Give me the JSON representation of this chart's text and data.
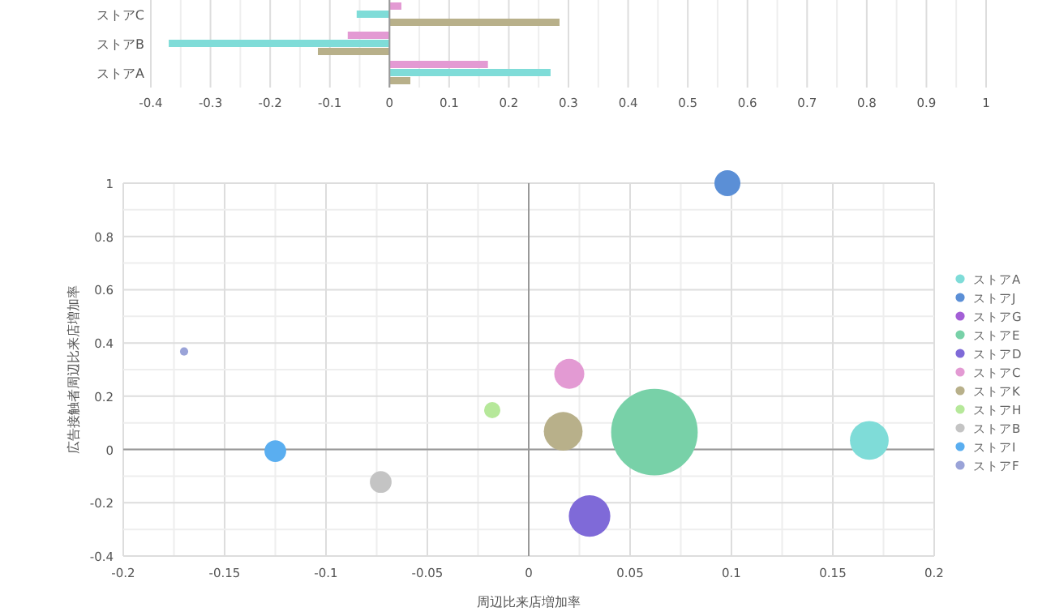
{
  "chart_data": [
    {
      "type": "bar",
      "orientation": "horizontal",
      "categories": [
        "ストアC",
        "ストアB",
        "ストアA"
      ],
      "series": [
        {
          "color": "#e39ad3",
          "values": [
            0.02,
            -0.07,
            0.165
          ]
        },
        {
          "color": "#7fdcd8",
          "values": [
            -0.055,
            -0.37,
            0.27
          ]
        },
        {
          "color": "#b8b08a",
          "values": [
            0.285,
            -0.12,
            0.035
          ]
        }
      ],
      "xlim": [
        -0.4,
        1
      ],
      "xticks": [
        -0.4,
        -0.3,
        -0.2,
        -0.1,
        0,
        0.1,
        0.2,
        0.3,
        0.4,
        0.5,
        0.6,
        0.7,
        0.8,
        0.9,
        1
      ],
      "grid": "x"
    },
    {
      "type": "bubble",
      "xlabel": "周辺比来店増加率",
      "ylabel": "広告接触者周辺比来店増加率",
      "legend": "right",
      "grid": true,
      "marker": "circle",
      "xlim": [
        -0.2,
        0.2
      ],
      "ylim": [
        -0.4,
        1
      ],
      "xticks": [
        -0.2,
        -0.15,
        -0.1,
        -0.05,
        0,
        0.05,
        0.1,
        0.15,
        0.2
      ],
      "yticks": [
        -0.4,
        -0.2,
        0,
        0.2,
        0.4,
        0.6,
        0.8,
        1
      ],
      "series": [
        {
          "name": "ストアA",
          "color": "#7fdcd8",
          "x": [
            0.168
          ],
          "values": [
            0.034
          ],
          "sizes": [
            0.2
          ]
        },
        {
          "name": "ストアJ",
          "color": "#5b8fd6",
          "x": [
            0.098
          ],
          "values": [
            1.0
          ],
          "sizes": [
            0.09
          ]
        },
        {
          "name": "ストアG",
          "color": "#a35fd6",
          "x": [
            null
          ],
          "values": [
            null
          ],
          "sizes": [
            null
          ]
        },
        {
          "name": "ストアE",
          "color": "#78d1a8",
          "x": [
            0.062
          ],
          "values": [
            0.065
          ],
          "sizes": [
            1
          ]
        },
        {
          "name": "ストアD",
          "color": "#7f6ad8",
          "x": [
            0.03
          ],
          "values": [
            -0.25
          ],
          "sizes": [
            0.23
          ]
        },
        {
          "name": "ストアC",
          "color": "#e39ad3",
          "x": [
            0.02
          ],
          "values": [
            0.284
          ],
          "sizes": [
            0.12
          ]
        },
        {
          "name": "ストアK",
          "color": "#b8b08a",
          "x": [
            0.017
          ],
          "values": [
            0.068
          ],
          "sizes": [
            0.2
          ]
        },
        {
          "name": "ストアH",
          "color": "#b6e89a",
          "x": [
            -0.018
          ],
          "values": [
            0.148
          ],
          "sizes": [
            0.035
          ]
        },
        {
          "name": "ストアB",
          "color": "#c4c4c4",
          "x": [
            -0.073
          ],
          "values": [
            -0.122
          ],
          "sizes": [
            0.063
          ]
        },
        {
          "name": "ストアI",
          "color": "#5aaef0",
          "x": [
            -0.125
          ],
          "values": [
            -0.006
          ],
          "sizes": [
            0.063
          ]
        },
        {
          "name": "ストアF",
          "color": "#9aa3d8",
          "x": [
            -0.17
          ],
          "values": [
            0.368
          ],
          "sizes": [
            0.009
          ]
        }
      ]
    }
  ]
}
